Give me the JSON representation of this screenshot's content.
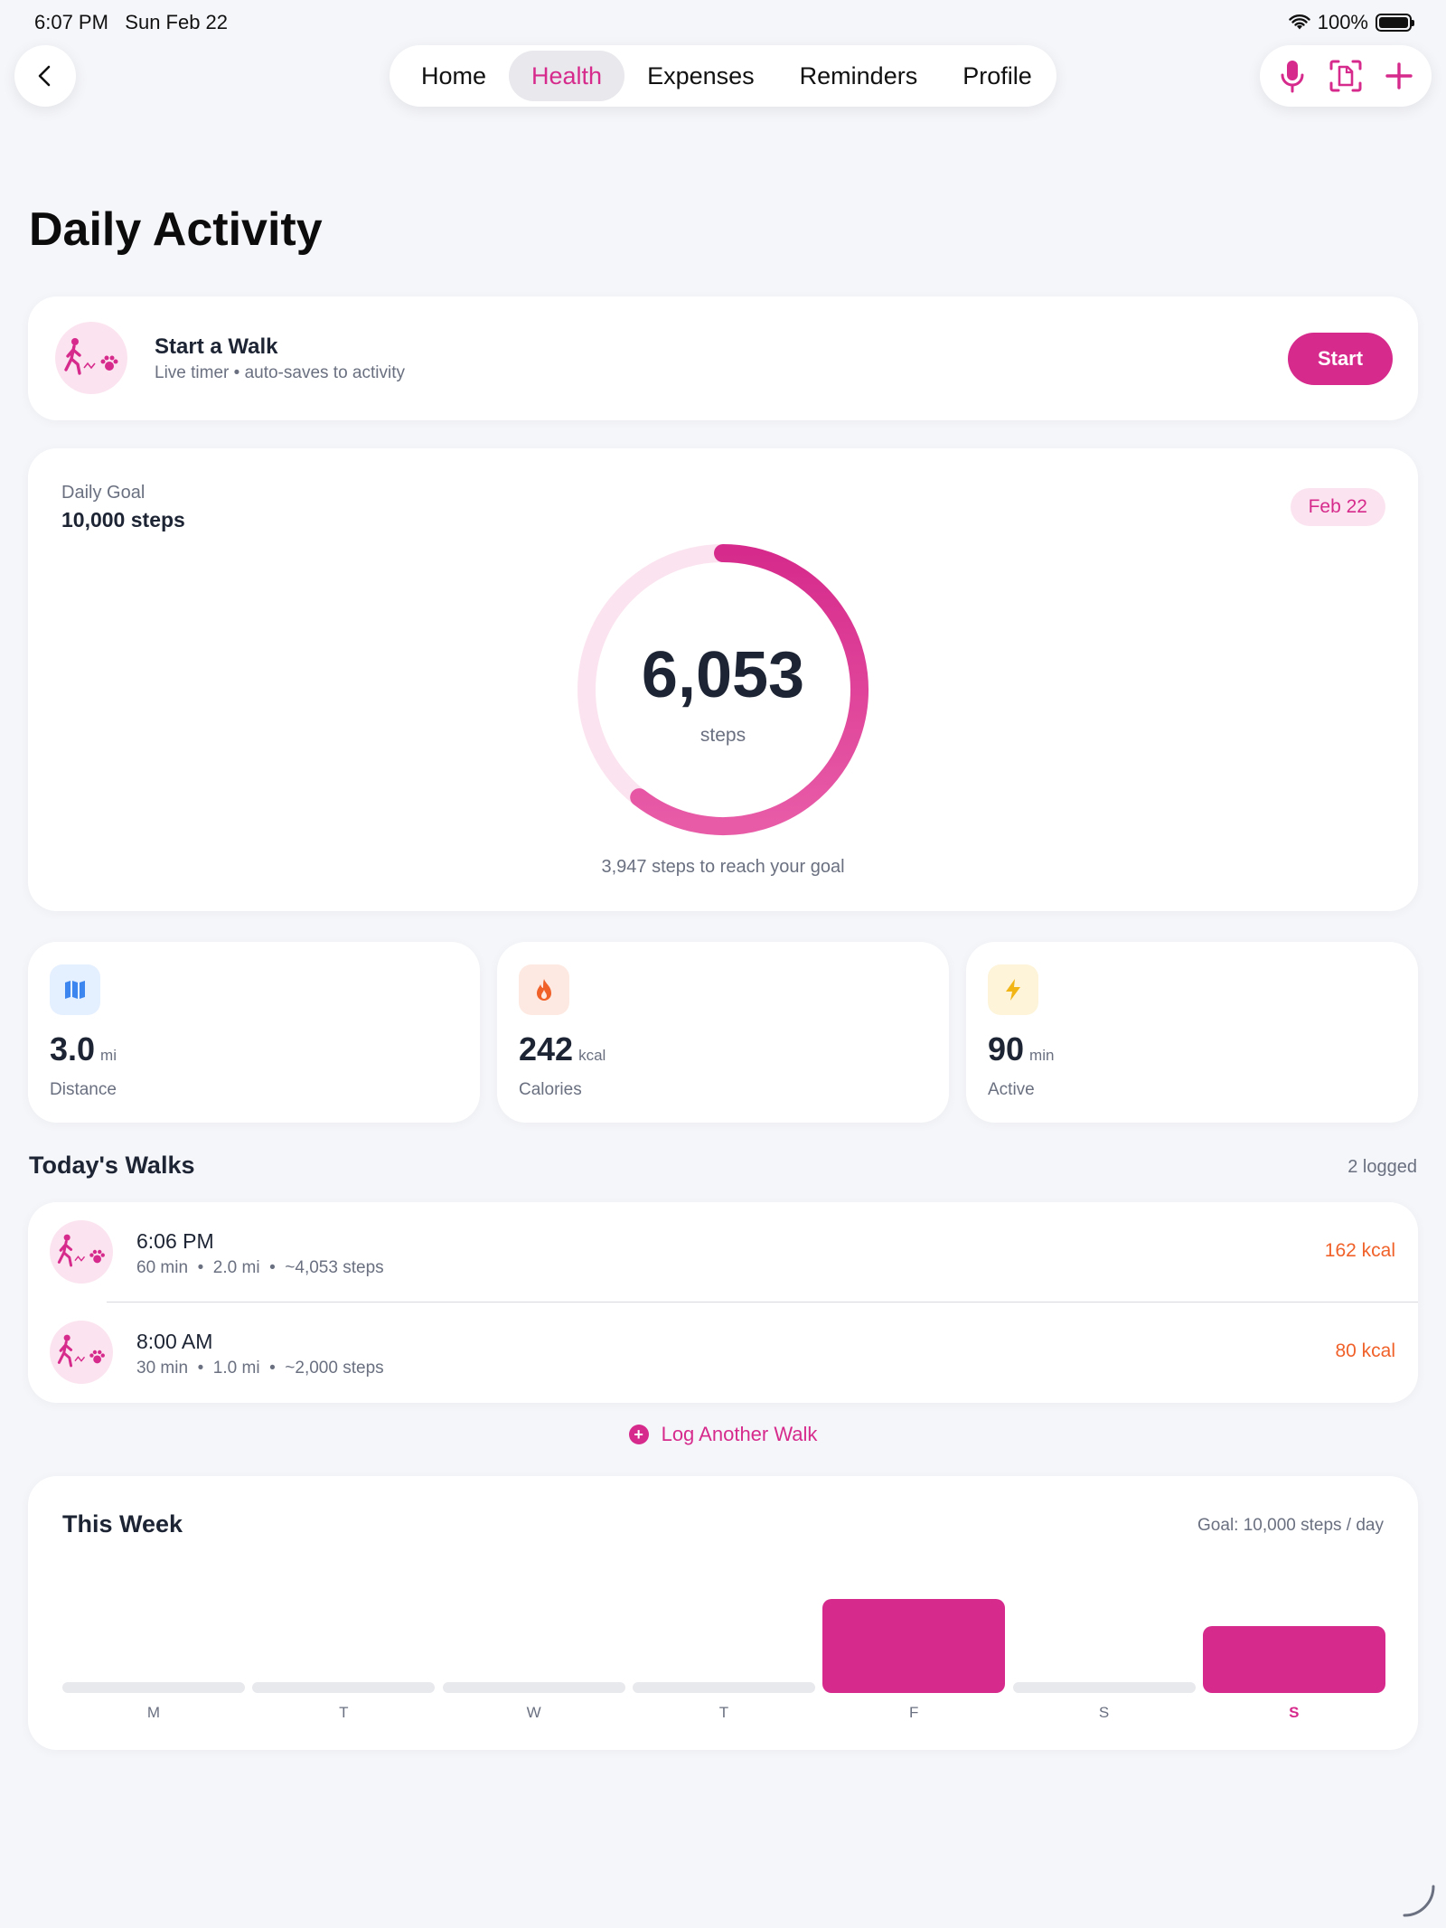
{
  "status_bar": {
    "time": "6:07 PM",
    "date": "Sun Feb 22",
    "battery": "100%"
  },
  "nav": {
    "tabs": [
      {
        "label": "Home"
      },
      {
        "label": "Health",
        "active": true
      },
      {
        "label": "Expenses"
      },
      {
        "label": "Reminders"
      },
      {
        "label": "Profile"
      }
    ]
  },
  "toolbar_icons": [
    "microphone-icon",
    "document-scan-icon",
    "plus-icon"
  ],
  "page": {
    "title": "Daily Activity"
  },
  "walk_card": {
    "title": "Start a Walk",
    "subtitle": "Live timer • auto-saves to activity",
    "button": "Start"
  },
  "goal": {
    "label": "Daily Goal",
    "value": "10,000 steps",
    "date": "Feb 22",
    "steps": "6,053",
    "unit": "steps",
    "progress": 0.6053,
    "remaining": "3,947 steps to reach your goal"
  },
  "stats": [
    {
      "value": "3.0",
      "unit": "mi",
      "label": "Distance",
      "icon": "map-icon",
      "color": "#3d86f0",
      "bg": "#e4efff"
    },
    {
      "value": "242",
      "unit": "kcal",
      "label": "Calories",
      "icon": "flame-icon",
      "color": "#f0612a",
      "bg": "#fde9e1"
    },
    {
      "value": "90",
      "unit": "min",
      "label": "Active",
      "icon": "bolt-icon",
      "color": "#f2b516",
      "bg": "#fdf4d9"
    }
  ],
  "walks": {
    "title": "Today's Walks",
    "count": "2 logged",
    "items": [
      {
        "time": "6:06 PM",
        "meta": "60 min  •  2.0 mi  •  ~4,053 steps",
        "kcal": "162 kcal"
      },
      {
        "time": "8:00 AM",
        "meta": "30 min  •  1.0 mi  •  ~2,000 steps",
        "kcal": "80 kcal"
      }
    ],
    "log_button": "Log Another Walk"
  },
  "week": {
    "title": "This Week",
    "goal": "Goal: 10,000 steps / day"
  },
  "chart_data": {
    "type": "bar",
    "categories": [
      "M",
      "T",
      "W",
      "T",
      "F",
      "S",
      "S"
    ],
    "values": [
      0,
      0,
      0,
      0,
      8500,
      0,
      6053
    ],
    "today_index": 6,
    "ylim": [
      0,
      10000
    ]
  },
  "colors": {
    "accent": "#d62b8c",
    "kcal": "#f0612a"
  }
}
